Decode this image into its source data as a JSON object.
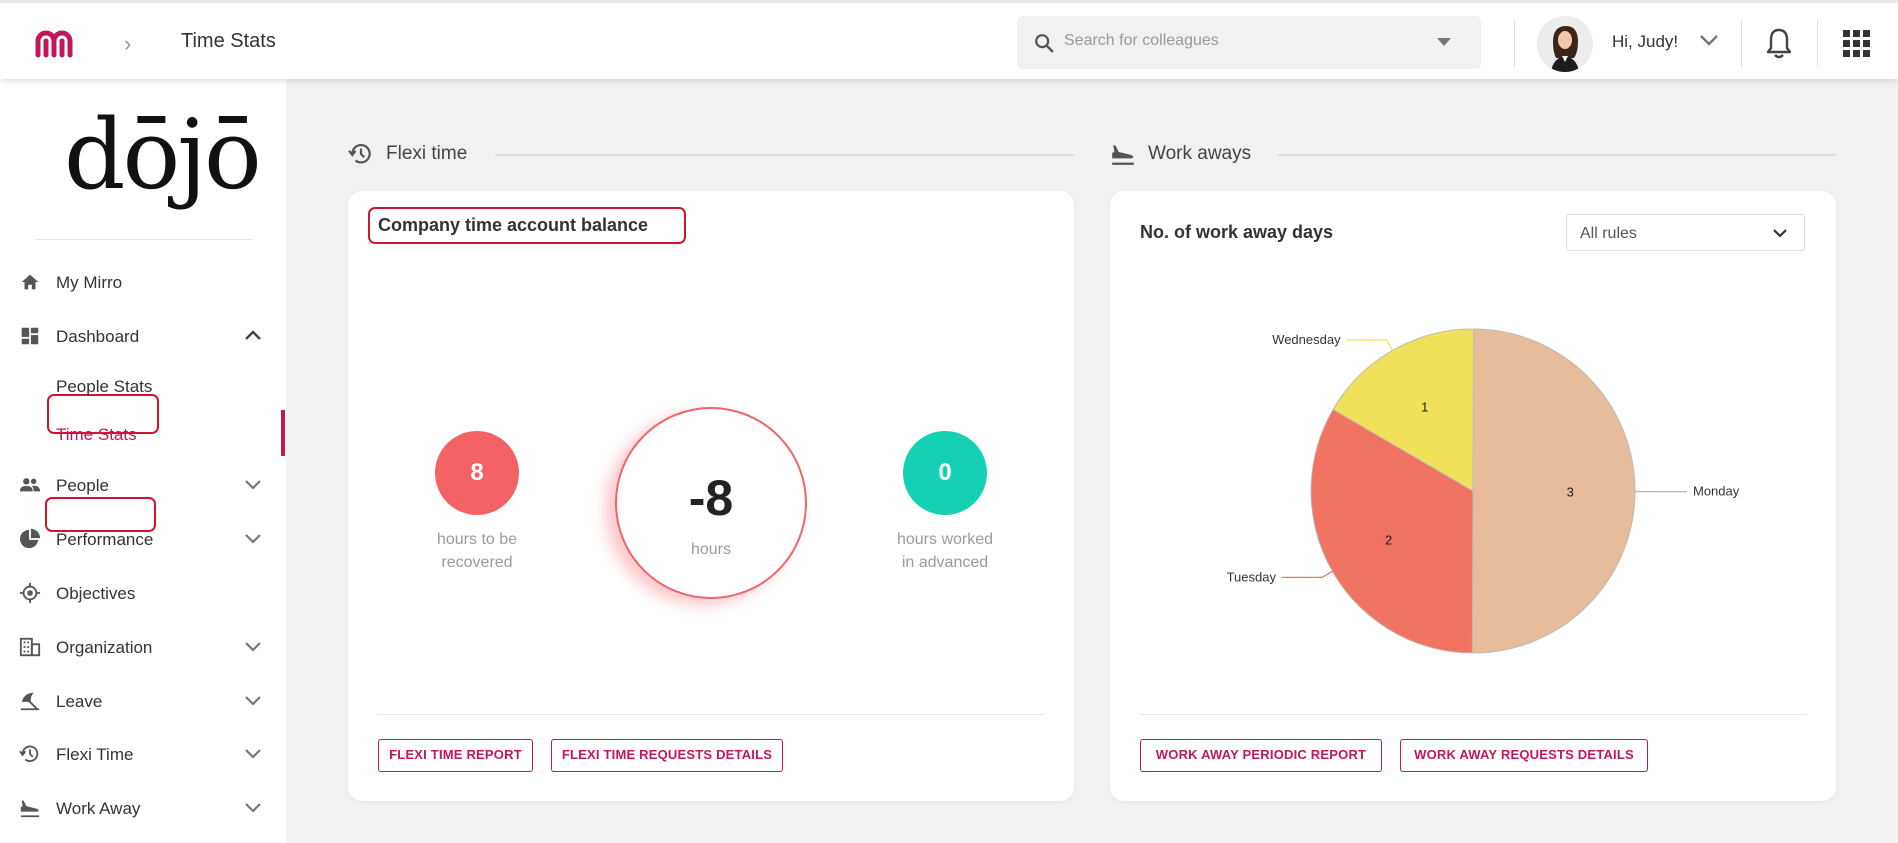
{
  "header": {
    "breadcrumb_title": "Time Stats",
    "search_placeholder": "Search for colleagues",
    "greeting": "Hi, Judy!"
  },
  "sidebar": {
    "logo_text": "dōjō",
    "items": [
      {
        "label": "My Mirro",
        "icon": "home-icon"
      },
      {
        "label": "Dashboard",
        "icon": "dashboard-icon",
        "expanded": true,
        "children": [
          {
            "label": "People Stats"
          },
          {
            "label": "Time Stats",
            "active": true
          }
        ]
      },
      {
        "label": "People",
        "icon": "people-icon"
      },
      {
        "label": "Performance",
        "icon": "pie-icon"
      },
      {
        "label": "Objectives",
        "icon": "target-icon"
      },
      {
        "label": "Organization",
        "icon": "building-icon"
      },
      {
        "label": "Leave",
        "icon": "umbrella-icon"
      },
      {
        "label": "Flexi Time",
        "icon": "history-icon"
      },
      {
        "label": "Work Away",
        "icon": "plane-icon"
      }
    ]
  },
  "flexi": {
    "section_title": "Flexi time",
    "card_title": "Company time account balance",
    "recover_value": "8",
    "recover_caption_1": "hours to be",
    "recover_caption_2": "recovered",
    "balance_value": "-8",
    "balance_unit": "hours",
    "advanced_value": "0",
    "advanced_caption_1": "hours worked",
    "advanced_caption_2": "in advanced",
    "btn_report": "FLEXI TIME REPORT",
    "btn_details": "FLEXI TIME REQUESTS DETAILS"
  },
  "workaway": {
    "section_title": "Work aways",
    "card_title": "No. of work away days",
    "filter_value": "All rules",
    "btn_report": "WORK AWAY PERIODIC REPORT",
    "btn_details": "WORK AWAY REQUESTS DETAILS"
  },
  "chart_data": {
    "type": "pie",
    "title": "",
    "slices": [
      {
        "label": "Monday",
        "value": 3,
        "color": "#e6bc9a"
      },
      {
        "label": "Tuesday",
        "value": 2,
        "color": "#f07461"
      },
      {
        "label": "Wednesday",
        "value": 1,
        "color": "#f0e05a"
      }
    ]
  },
  "colors": {
    "accent": "#c2185b",
    "highlight": "#d01530",
    "red_bubble": "#f46266",
    "teal_bubble": "#16d0b3"
  }
}
